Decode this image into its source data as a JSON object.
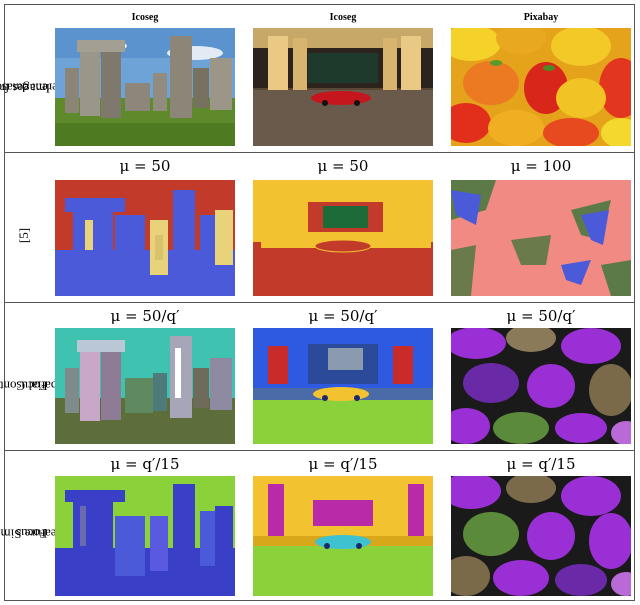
{
  "columns": [
    {
      "dataset": "Icoseg"
    },
    {
      "dataset": "Icoseg"
    },
    {
      "dataset": "Pixabay"
    }
  ],
  "rows": [
    {
      "label_lines": [
        "Images from",
        "different datasets"
      ],
      "mu": [
        "",
        "",
        ""
      ]
    },
    {
      "label_lines": [
        "[5]"
      ],
      "mu": [
        "μ = 50",
        "μ = 50",
        "μ = 100"
      ]
    },
    {
      "label_lines": [
        "Spatial Continuity",
        "Focus"
      ],
      "mu": [
        "μ = 50/q′",
        "μ = 50/q′",
        "μ = 50/q′"
      ]
    },
    {
      "label_lines": [
        "Feature Similarity",
        "Focus"
      ],
      "mu": [
        "μ = q′/15",
        "μ = q′/15",
        "μ = q′/15"
      ]
    }
  ],
  "panel_images": [
    [
      "photo-stonehenge",
      "photo-car-driveway",
      "photo-bell-peppers"
    ],
    [
      "segmentation-stonehenge-prior-work",
      "segmentation-car-prior-work",
      "segmentation-peppers-prior-work"
    ],
    [
      "segmentation-stonehenge-spatial-continuity",
      "segmentation-car-spatial-continuity",
      "segmentation-peppers-spatial-continuity"
    ],
    [
      "segmentation-stonehenge-feature-similarity",
      "segmentation-car-feature-similarity",
      "segmentation-peppers-feature-similarity"
    ]
  ],
  "colors": {
    "border": "#555555",
    "seg_blue": "#4a5ad8",
    "seg_red": "#c23a2a",
    "seg_yellow": "#f2c230",
    "seg_purple": "#9b2fd6",
    "seg_green": "#8bd13a",
    "seg_teal": "#3fc2b0",
    "seg_pink": "#f08a82"
  }
}
